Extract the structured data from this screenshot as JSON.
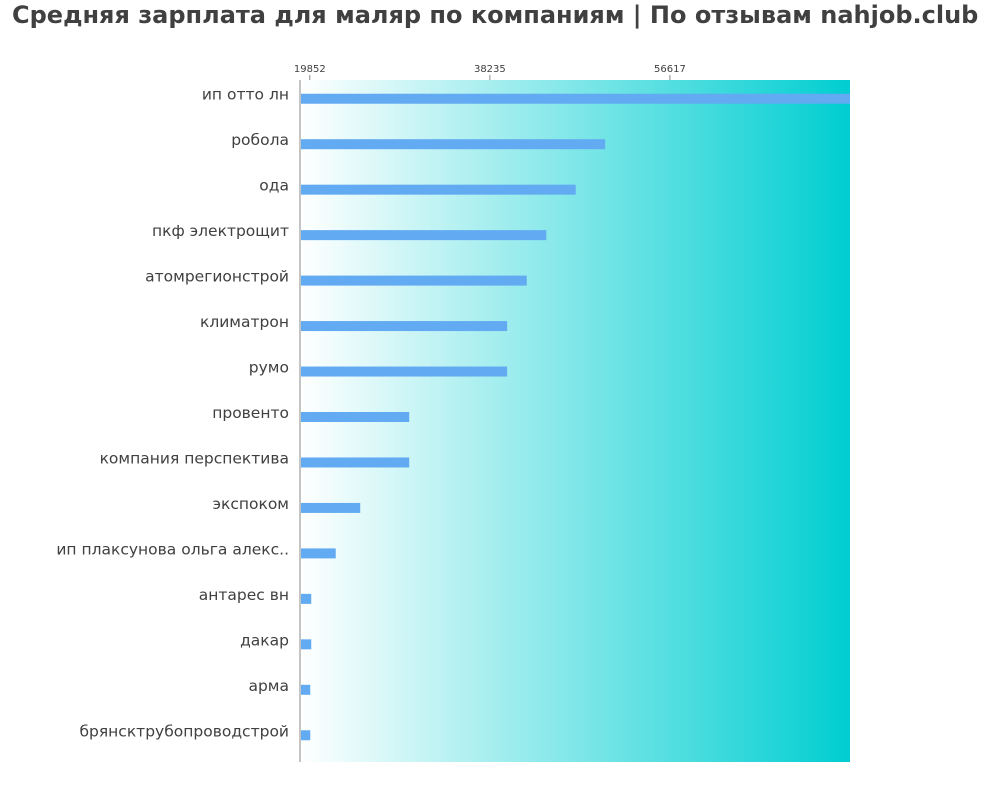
{
  "title": "Средняя зарплата для маляр по компаниям  | По отзывам nahjob.club",
  "colors": {
    "bar": "#62aaf2",
    "gradient_start": "#ffffff",
    "gradient_end": "#00ced1",
    "axis": "#888888",
    "text": "#404040"
  },
  "chart_data": {
    "type": "bar",
    "orientation": "horizontal",
    "title": "Средняя зарплата для маляр по компаниям  | По отзывам nahjob.club",
    "xlabel": "",
    "ylabel": "",
    "x_ticks": [
      19852,
      38235,
      56617
    ],
    "xlim": [
      18852,
      75000
    ],
    "grid": false,
    "categories": [
      "ип отто лн",
      "робола",
      "ода",
      "пкф электрощит",
      "атомрегионстрой",
      "климатрон",
      "румо",
      "провенто",
      "компания перспектива",
      "экспоком",
      "ип плаксунова ольга алекс..",
      "антарес вн",
      "дакар",
      "арма",
      "брянсктрубопроводстрой"
    ],
    "values": [
      75000,
      50000,
      47000,
      44000,
      42000,
      40000,
      40000,
      30000,
      30000,
      25000,
      22500,
      20000,
      20000,
      19900,
      19900
    ]
  }
}
